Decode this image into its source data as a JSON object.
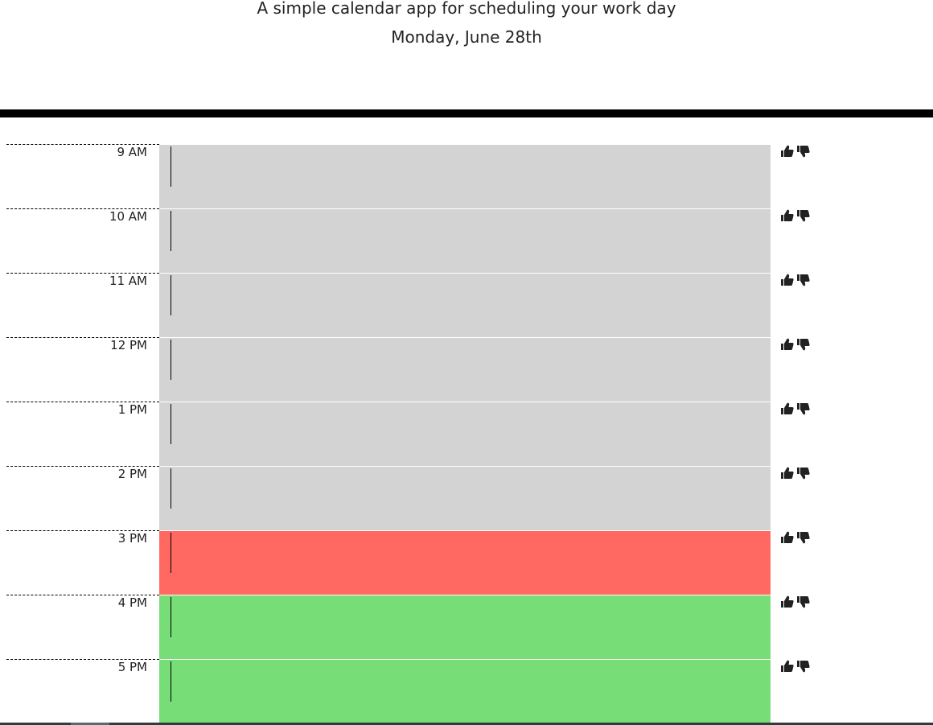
{
  "header": {
    "lead": "A simple calendar app for scheduling your work day",
    "current_day": "Monday, June 28th"
  },
  "time_blocks": [
    {
      "hour": "9 AM",
      "state": "past",
      "text": ""
    },
    {
      "hour": "10 AM",
      "state": "past",
      "text": ""
    },
    {
      "hour": "11 AM",
      "state": "past",
      "text": ""
    },
    {
      "hour": "12 PM",
      "state": "past",
      "text": ""
    },
    {
      "hour": "1 PM",
      "state": "past",
      "text": ""
    },
    {
      "hour": "2 PM",
      "state": "past",
      "text": ""
    },
    {
      "hour": "3 PM",
      "state": "present",
      "text": ""
    },
    {
      "hour": "4 PM",
      "state": "future",
      "text": ""
    },
    {
      "hour": "5 PM",
      "state": "future",
      "text": ""
    }
  ],
  "icons": {
    "save": "thumbs-up-icon",
    "clear": "thumbs-down-icon"
  },
  "colors": {
    "past": "#d3d3d3",
    "present": "#ff6961",
    "future": "#77dd77",
    "divider": "#000000"
  }
}
